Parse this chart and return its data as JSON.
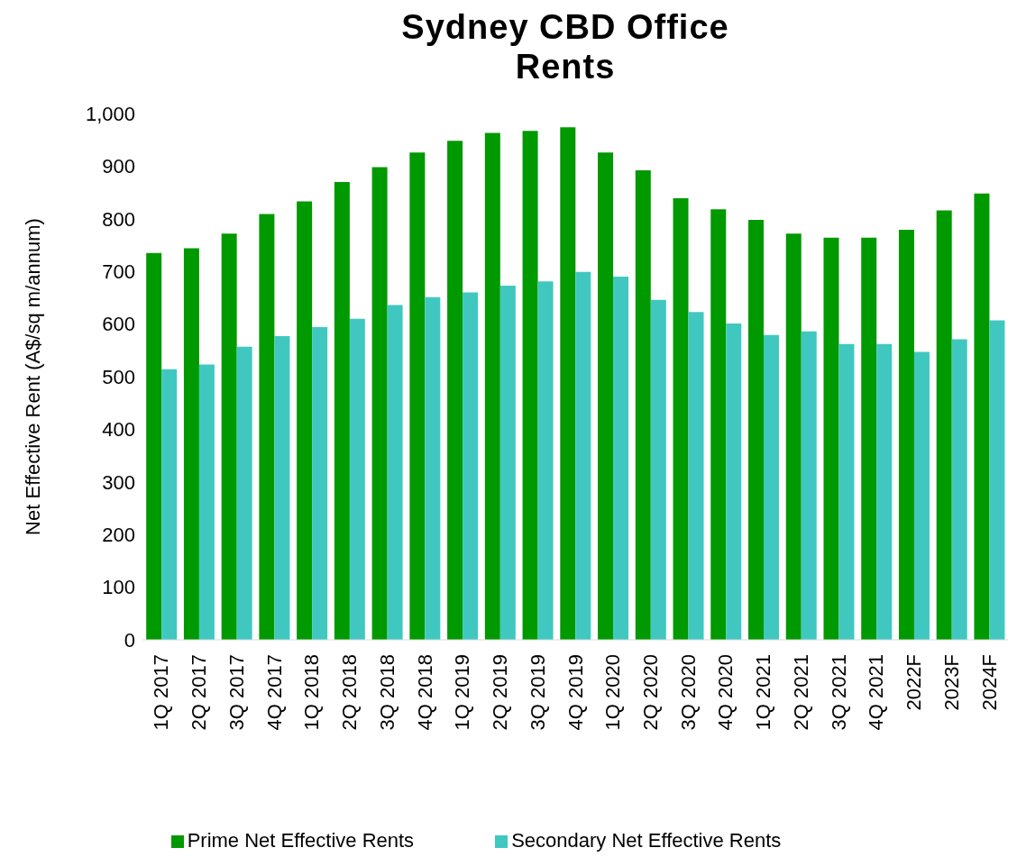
{
  "chart_data": {
    "type": "bar",
    "title": "Sydney CBD Office Rents",
    "ylabel": "Net Effective Rent (A$/sq m/annum)",
    "categories": [
      "1Q 2017",
      "2Q 2017",
      "3Q 2017",
      "4Q 2017",
      "1Q 2018",
      "2Q 2018",
      "3Q 2018",
      "4Q 2018",
      "1Q 2019",
      "2Q 2019",
      "3Q 2019",
      "4Q 2019",
      "1Q 2020",
      "2Q 2020",
      "3Q 2020",
      "4Q 2020",
      "1Q 2021",
      "2Q 2021",
      "3Q 2021",
      "4Q 2021",
      "2022F",
      "2023F",
      "2024F"
    ],
    "series": [
      {
        "name": "Prime Net Effective Rents",
        "color": "#009900",
        "values": [
          735,
          744,
          772,
          809,
          833,
          870,
          898,
          926,
          948,
          963,
          967,
          974,
          926,
          892,
          839,
          818,
          798,
          772,
          764,
          764,
          779,
          816,
          848
        ]
      },
      {
        "name": "Secondary Net Effective Rents",
        "color": "#40c8c0",
        "values": [
          514,
          523,
          557,
          577,
          594,
          610,
          636,
          651,
          660,
          673,
          681,
          699,
          690,
          646,
          623,
          601,
          579,
          586,
          562,
          562,
          547,
          571,
          607
        ]
      }
    ],
    "ylim": [
      0,
      1000
    ],
    "yticks": [
      0,
      100,
      200,
      300,
      400,
      500,
      600,
      700,
      800,
      900,
      {
        "value": 1000,
        "label": "1,000"
      }
    ],
    "legend": "bottom"
  }
}
